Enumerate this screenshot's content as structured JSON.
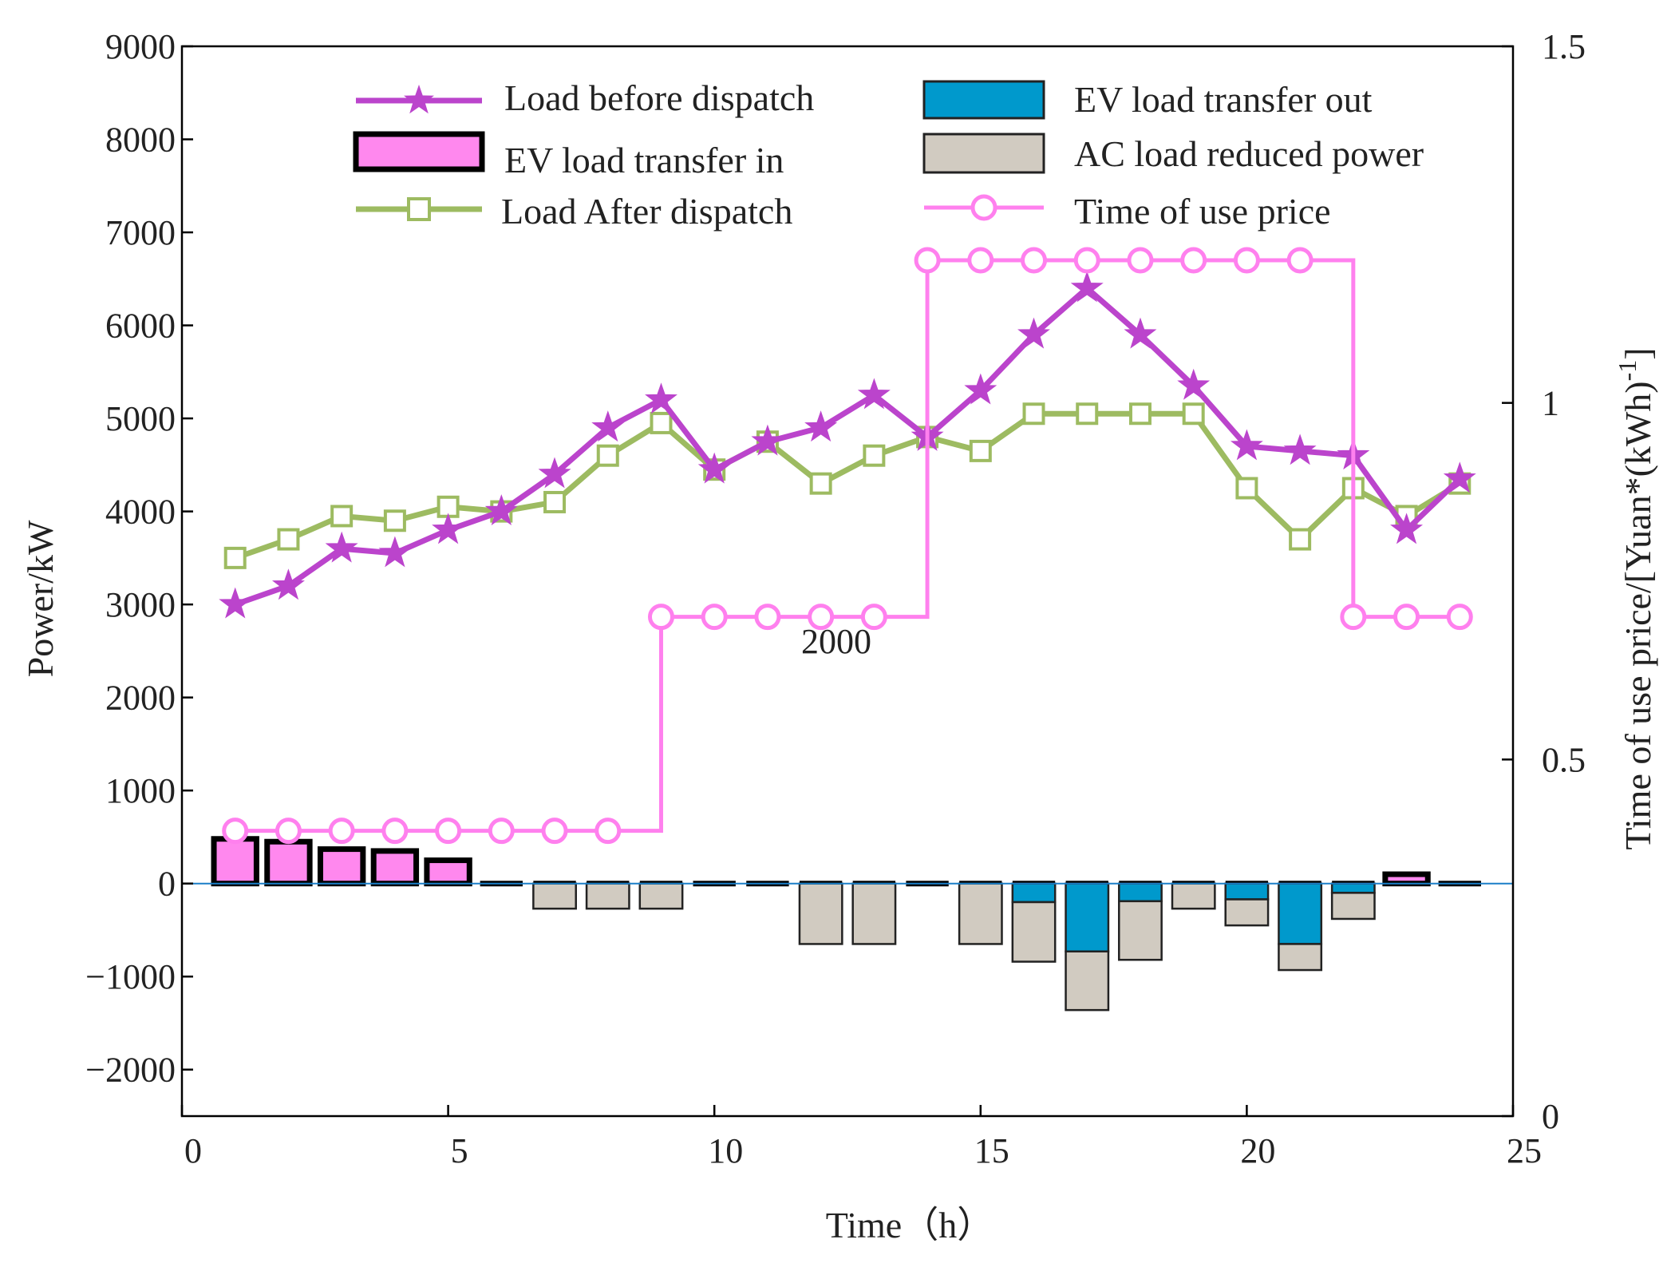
{
  "chart_data": {
    "type": "bar",
    "xlabel": "Time（h）",
    "ylabel": "Power/kW",
    "y2label": "Time of use price/[Yuan*(kWh)",
    "y2label_sup": "-1",
    "y2label_end": "]",
    "xlim": [
      0,
      25
    ],
    "ylim": [
      -2500,
      9000
    ],
    "y2lim": [
      0,
      1.5
    ],
    "xticks": [
      0,
      5,
      10,
      15,
      20,
      25
    ],
    "yticks": [
      -2000,
      -1000,
      0,
      1000,
      2000,
      3000,
      4000,
      5000,
      6000,
      7000,
      8000,
      9000
    ],
    "y2ticks": [
      0,
      0.5,
      1,
      1.5
    ],
    "xtick_labels": [
      "0",
      "5",
      "10",
      "15",
      "20",
      "25"
    ],
    "ytick_labels": [
      "−2000",
      "−1000",
      "0",
      "1000",
      "2000",
      "3000",
      "4000",
      "5000",
      "6000",
      "7000",
      "8000",
      "9000"
    ],
    "y2tick_labels": [
      "0",
      "0.5",
      "1",
      "1.5"
    ],
    "annotation": "2000",
    "x": [
      1,
      2,
      3,
      4,
      5,
      6,
      7,
      8,
      9,
      10,
      11,
      12,
      13,
      14,
      15,
      16,
      17,
      18,
      19,
      20,
      21,
      22,
      23,
      24
    ],
    "series": [
      {
        "name": "Load before dispatch",
        "kind": "line",
        "marker": "star",
        "color": "#bb44cc",
        "values": [
          3000,
          3200,
          3600,
          3550,
          3800,
          4000,
          4400,
          4900,
          5200,
          4450,
          4750,
          4900,
          5250,
          4800,
          5300,
          5900,
          6400,
          5900,
          5350,
          4700,
          4650,
          4600,
          3800,
          4350
        ]
      },
      {
        "name": "Load After dispatch",
        "kind": "line",
        "marker": "square",
        "color": "#9dbb61",
        "values": [
          3500,
          3700,
          3950,
          3900,
          4050,
          4000,
          4100,
          4600,
          4950,
          4450,
          4750,
          4300,
          4600,
          4800,
          4650,
          5050,
          5050,
          5050,
          5050,
          4250,
          3700,
          4250,
          3950,
          4300
        ]
      },
      {
        "name": "EV load transfer in",
        "kind": "bar",
        "color": "#ff88ee",
        "edge": "#000000",
        "values": [
          480,
          450,
          370,
          350,
          250,
          0,
          0,
          0,
          0,
          0,
          0,
          0,
          0,
          0,
          0,
          0,
          0,
          0,
          0,
          0,
          0,
          0,
          100,
          0
        ]
      },
      {
        "name": "EV load transfer out",
        "kind": "bar",
        "color": "#0099cc",
        "edge": "#222222",
        "values": [
          0,
          0,
          0,
          0,
          0,
          0,
          0,
          0,
          0,
          0,
          0,
          0,
          0,
          0,
          0,
          -200,
          -730,
          -190,
          0,
          -170,
          -650,
          -100,
          0,
          0
        ]
      },
      {
        "name": "AC load reduced power",
        "kind": "bar",
        "color": "#d1cbc1",
        "edge": "#222222",
        "values": [
          0,
          0,
          0,
          0,
          0,
          0,
          -270,
          -270,
          -270,
          0,
          0,
          -650,
          -650,
          0,
          -650,
          -640,
          -630,
          -630,
          -270,
          -280,
          -280,
          -280,
          0,
          0
        ]
      },
      {
        "name": "Time of use price",
        "kind": "step",
        "marker": "circle",
        "axis": "right",
        "color": "#ff80ee",
        "values": [
          0.4,
          0.4,
          0.4,
          0.4,
          0.4,
          0.4,
          0.4,
          0.4,
          0.7,
          0.7,
          0.7,
          0.7,
          0.7,
          1.2,
          1.2,
          1.2,
          1.2,
          1.2,
          1.2,
          1.2,
          1.2,
          0.7,
          0.7,
          0.7
        ]
      }
    ],
    "legend_placement": "top",
    "grid": false
  }
}
